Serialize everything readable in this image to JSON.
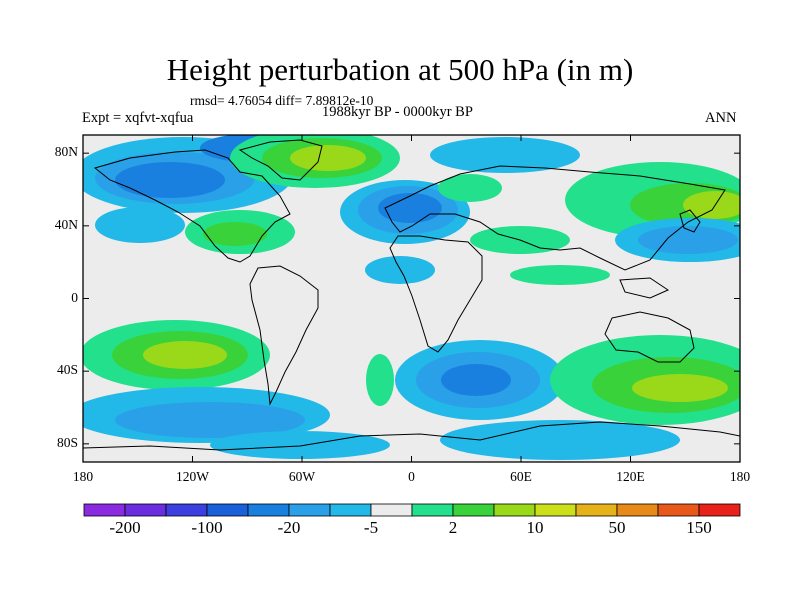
{
  "map": {
    "title": "Height perturbation at 500 hPa (in m)",
    "stats": "rmsd= 4.76054 diff= 7.89812e-10",
    "experiment": "Expt = xqfvt-xqfua",
    "period": "1988kyr BP - 0000kyr BP",
    "season": "ANN",
    "lat_labels": [
      "80N",
      "40N",
      "0",
      "40S",
      "80S"
    ],
    "lon_labels": [
      "180",
      "120W",
      "60W",
      "0",
      "60E",
      "120E",
      "180"
    ],
    "lat_values": [
      80,
      40,
      0,
      -40,
      -80
    ],
    "lon_values": [
      -180,
      -120,
      -60,
      0,
      60,
      120,
      180
    ],
    "lat_range": [
      -90,
      90
    ],
    "lon_range": [
      -180,
      180
    ]
  },
  "colorbar": {
    "labels": [
      "-200",
      "-100",
      "-20",
      "-5",
      "2",
      "10",
      "50",
      "150"
    ],
    "label_bins": [
      1,
      3,
      5,
      7,
      9,
      11,
      13,
      15
    ],
    "colors": [
      "#8a2be2",
      "#6a2ee0",
      "#3c40e0",
      "#1a60d8",
      "#1a80e0",
      "#2aa0e8",
      "#22b8e8",
      "#ececec",
      "#22e08c",
      "#3ad23a",
      "#9ad81a",
      "#cce01a",
      "#e6b21a",
      "#e88a1a",
      "#e8581a",
      "#e8221a"
    ]
  }
}
